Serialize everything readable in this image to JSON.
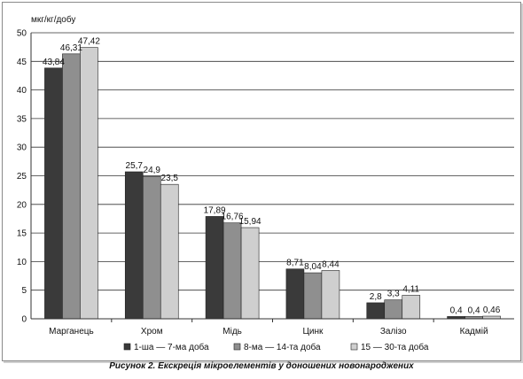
{
  "chart_data": {
    "type": "bar",
    "ylabel": "мкг/кг/добу",
    "ylim": [
      0,
      50
    ],
    "yticks": [
      0,
      5,
      10,
      15,
      20,
      25,
      30,
      35,
      40,
      45,
      50
    ],
    "grid": true,
    "legend_position": "bottom",
    "categories": [
      "Марганець",
      "Хром",
      "Мідь",
      "Цинк",
      "Залізо",
      "Кадмій"
    ],
    "series": [
      {
        "name": "1-ша — 7-ма доба",
        "color": "#3a3a3a",
        "values": [
          43.84,
          25.7,
          17.89,
          8.71,
          2.8,
          0.4
        ],
        "labels": [
          "43,84",
          "25,7",
          "17,89",
          "8,71",
          "2,8",
          "0,4"
        ]
      },
      {
        "name": "8-ма — 14-та доба",
        "color": "#8f8f8f",
        "values": [
          46.31,
          24.9,
          16.76,
          8.04,
          3.3,
          0.4
        ],
        "labels": [
          "46,31",
          "24,9",
          "16,76",
          "8,04",
          "3,3",
          "0,4"
        ]
      },
      {
        "name": "15 — 30-та доба",
        "color": "#cfcfcf",
        "values": [
          47.42,
          23.5,
          15.94,
          8.44,
          4.11,
          0.46
        ],
        "labels": [
          "47,42",
          "23,5",
          "15,94",
          "8,44",
          "4,11",
          "0,46"
        ]
      }
    ]
  },
  "caption": "Рисунок 2. Екскреція мікроелементів у доношених новонароджених"
}
